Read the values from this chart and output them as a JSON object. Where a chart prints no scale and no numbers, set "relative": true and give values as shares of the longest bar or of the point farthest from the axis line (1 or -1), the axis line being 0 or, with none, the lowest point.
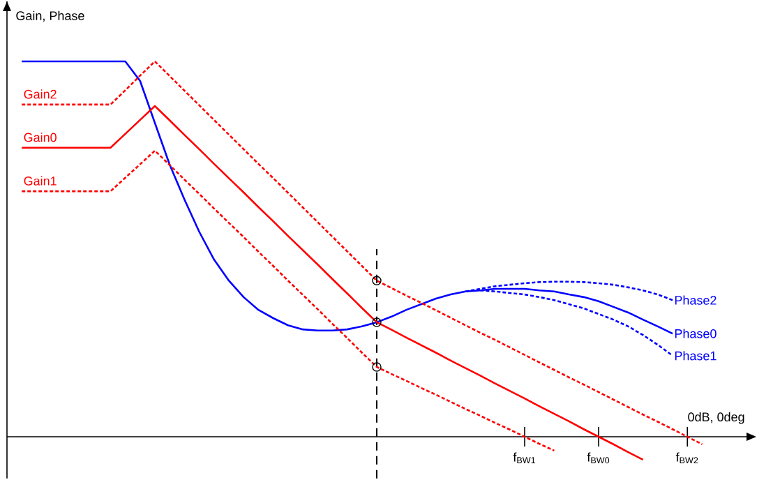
{
  "chart_data": {
    "type": "line",
    "relative": true,
    "xlabel": "0dB, 0deg",
    "ylabel": "Gain, Phase",
    "categories": [
      null,
      null,
      null,
      null,
      null,
      null,
      null,
      null,
      null,
      null,
      null,
      null,
      null,
      null,
      null,
      null,
      null,
      null,
      null,
      null,
      null,
      null,
      null,
      null,
      null,
      null,
      null,
      null,
      null,
      null,
      null,
      null,
      null,
      null,
      null,
      "f$_{BW1}$",
      null,
      null,
      null,
      null,
      "f$_{BW0}$",
      null,
      null,
      null,
      null,
      null,
      "f$_{BW2}$",
      null,
      null,
      null,
      null
    ],
    "grid": false,
    "series": [
      {
        "name": "Phase0",
        "color": "#0000ff",
        "line_style": "solid",
        "values": [
          null,
          1.0,
          1.0,
          1.0,
          1.0,
          1.0,
          1.0,
          1.0,
          1.0,
          0.948,
          0.836,
          0.725,
          0.632,
          0.546,
          0.472,
          0.416,
          0.372,
          0.338,
          0.316,
          0.297,
          0.286,
          0.283,
          0.283,
          0.286,
          0.294,
          0.305,
          0.32,
          0.338,
          0.353,
          0.368,
          0.379,
          0.387,
          0.39,
          0.394,
          0.394,
          0.394,
          0.39,
          0.387,
          0.379,
          0.372,
          0.361,
          0.346,
          0.331,
          0.312,
          0.294,
          0.275,
          null,
          null,
          null,
          null,
          null
        ]
      },
      {
        "name": "Phase2",
        "color": "#0000ff",
        "line_style": "dashed",
        "values": [
          null,
          null,
          null,
          null,
          null,
          null,
          null,
          null,
          null,
          null,
          null,
          null,
          null,
          null,
          null,
          null,
          null,
          null,
          null,
          null,
          null,
          null,
          null,
          null,
          null,
          null,
          null,
          null,
          null,
          null,
          null,
          0.387,
          0.394,
          0.401,
          0.405,
          0.409,
          0.412,
          0.413,
          0.413,
          0.412,
          0.409,
          0.405,
          0.398,
          0.39,
          0.379,
          0.364,
          null,
          null,
          null,
          null,
          null
        ]
      },
      {
        "name": "Phase1",
        "color": "#0000ff",
        "line_style": "dashed",
        "values": [
          null,
          null,
          null,
          null,
          null,
          null,
          null,
          null,
          null,
          null,
          null,
          null,
          null,
          null,
          null,
          null,
          null,
          null,
          null,
          null,
          null,
          null,
          null,
          null,
          null,
          null,
          null,
          null,
          null,
          null,
          null,
          null,
          0.39,
          0.387,
          0.383,
          0.379,
          0.372,
          0.364,
          0.353,
          0.342,
          0.327,
          0.312,
          0.294,
          0.271,
          0.245,
          0.216,
          null,
          null,
          null,
          null,
          null
        ]
      },
      {
        "name": "Gain2",
        "color": "#ff0000",
        "line_style": "dashed",
        "values": [
          null,
          0.885,
          0.885,
          0.885,
          0.885,
          0.885,
          0.885,
          0.885,
          0.923,
          0.962,
          1.0,
          0.961,
          0.922,
          0.883,
          0.844,
          0.805,
          0.766,
          0.727,
          0.689,
          0.65,
          0.611,
          0.572,
          0.533,
          0.494,
          0.455,
          0.416,
          0.396,
          0.376,
          0.357,
          0.337,
          0.317,
          0.297,
          0.277,
          0.258,
          0.238,
          0.218,
          0.198,
          0.178,
          0.158,
          0.139,
          0.119,
          0.099,
          0.079,
          0.059,
          0.04,
          0.02,
          0,
          -0.02,
          null,
          null,
          null
        ]
      },
      {
        "name": "Gain0",
        "color": "#ff0000",
        "line_style": "solid",
        "values": [
          null,
          0.77,
          0.77,
          0.77,
          0.77,
          0.77,
          0.77,
          0.77,
          0.807,
          0.844,
          0.881,
          0.843,
          0.804,
          0.766,
          0.727,
          0.689,
          0.651,
          0.612,
          0.574,
          0.535,
          0.497,
          0.459,
          0.42,
          0.382,
          0.343,
          0.305,
          0.285,
          0.264,
          0.244,
          0.224,
          0.203,
          0.183,
          0.163,
          0.142,
          0.122,
          0.102,
          0.081,
          0.061,
          0.041,
          0.02,
          0,
          -0.02,
          -0.041,
          -0.061,
          null,
          null,
          null,
          null,
          null,
          null,
          null
        ]
      },
      {
        "name": "Gain1",
        "color": "#ff0000",
        "line_style": "dashed",
        "values": [
          null,
          0.654,
          0.654,
          0.654,
          0.654,
          0.654,
          0.654,
          0.654,
          0.69,
          0.726,
          0.762,
          0.724,
          0.685,
          0.647,
          0.608,
          0.57,
          0.532,
          0.493,
          0.455,
          0.416,
          0.378,
          0.34,
          0.301,
          0.263,
          0.224,
          0.186,
          0.167,
          0.149,
          0.13,
          0.112,
          0.093,
          0.074,
          0.056,
          0.037,
          0.019,
          0,
          -0.019,
          -0.037,
          null,
          null,
          null,
          null,
          null,
          null,
          null,
          null,
          null,
          null,
          null,
          null,
          null
        ]
      },
      {
        "type": "scatter",
        "marker": "circle",
        "color": "#000000",
        "values": [
          null,
          null,
          null,
          null,
          null,
          null,
          null,
          null,
          null,
          null,
          null,
          null,
          null,
          null,
          null,
          null,
          null,
          null,
          null,
          null,
          null,
          null,
          null,
          null,
          null,
          0.416,
          null,
          null,
          null,
          null,
          null,
          null,
          null,
          null,
          null,
          null,
          null,
          null,
          null,
          null,
          null,
          null,
          null,
          null,
          null,
          null,
          null,
          null,
          null,
          null,
          null
        ]
      },
      {
        "type": "scatter",
        "marker": "circle",
        "color": "#000000",
        "values": [
          null,
          null,
          null,
          null,
          null,
          null,
          null,
          null,
          null,
          null,
          null,
          null,
          null,
          null,
          null,
          null,
          null,
          null,
          null,
          null,
          null,
          null,
          null,
          null,
          null,
          0.305,
          null,
          null,
          null,
          null,
          null,
          null,
          null,
          null,
          null,
          null,
          null,
          null,
          null,
          null,
          null,
          null,
          null,
          null,
          null,
          null,
          null,
          null,
          null,
          null,
          null
        ]
      },
      {
        "type": "scatter",
        "marker": "circle",
        "color": "#000000",
        "values": [
          null,
          null,
          null,
          null,
          null,
          null,
          null,
          null,
          null,
          null,
          null,
          null,
          null,
          null,
          null,
          null,
          null,
          null,
          null,
          null,
          null,
          null,
          null,
          null,
          null,
          0.186,
          null,
          null,
          null,
          null,
          null,
          null,
          null,
          null,
          null,
          null,
          null,
          null,
          null,
          null,
          null,
          null,
          null,
          null,
          null,
          null,
          null,
          null,
          null,
          null,
          null
        ]
      }
    ]
  }
}
